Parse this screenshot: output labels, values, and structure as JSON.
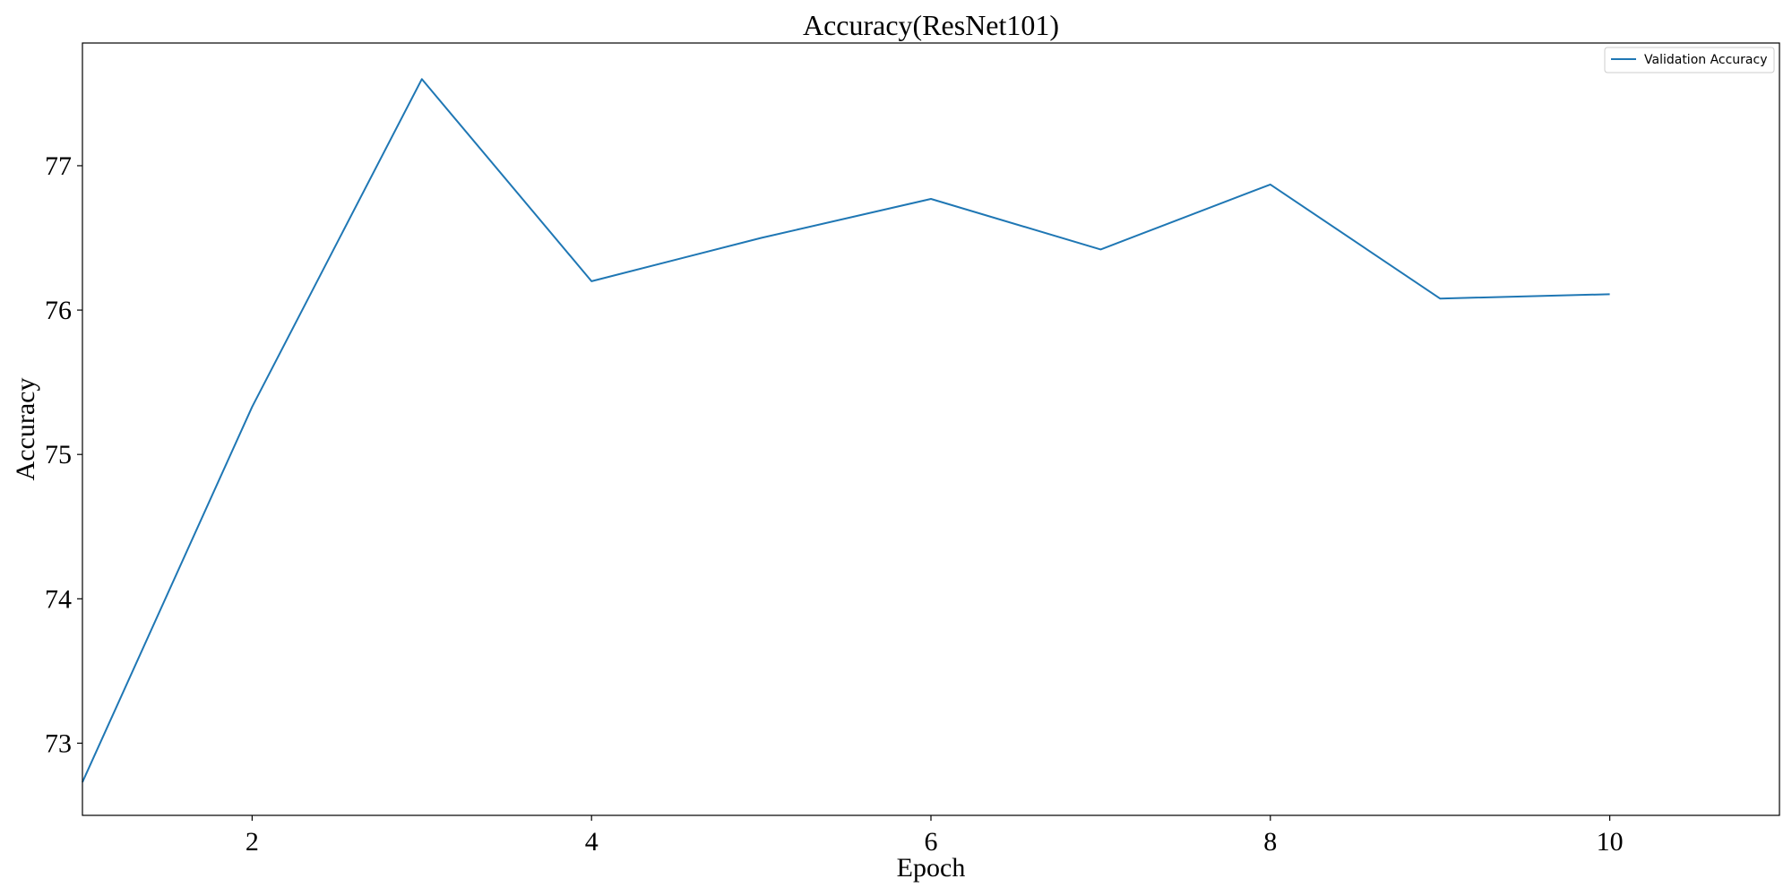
{
  "chart_data": {
    "type": "line",
    "title": "Accuracy(ResNet101)",
    "xlabel": "Epoch",
    "ylabel": "Accuracy",
    "x": [
      1,
      2,
      3,
      4,
      5,
      6,
      7,
      8,
      9,
      10
    ],
    "series": [
      {
        "name": "Validation Accuracy",
        "color": "#1f77b4",
        "values": [
          72.73,
          75.33,
          77.6,
          76.2,
          76.5,
          76.77,
          76.42,
          76.87,
          76.08,
          76.11
        ]
      }
    ],
    "xlim": [
      1,
      11
    ],
    "ylim": [
      72.5,
      77.85
    ],
    "xticks": [
      2,
      4,
      6,
      8,
      10
    ],
    "yticks": [
      73,
      74,
      75,
      76,
      77
    ],
    "grid": false,
    "legend_position": "top-right"
  }
}
